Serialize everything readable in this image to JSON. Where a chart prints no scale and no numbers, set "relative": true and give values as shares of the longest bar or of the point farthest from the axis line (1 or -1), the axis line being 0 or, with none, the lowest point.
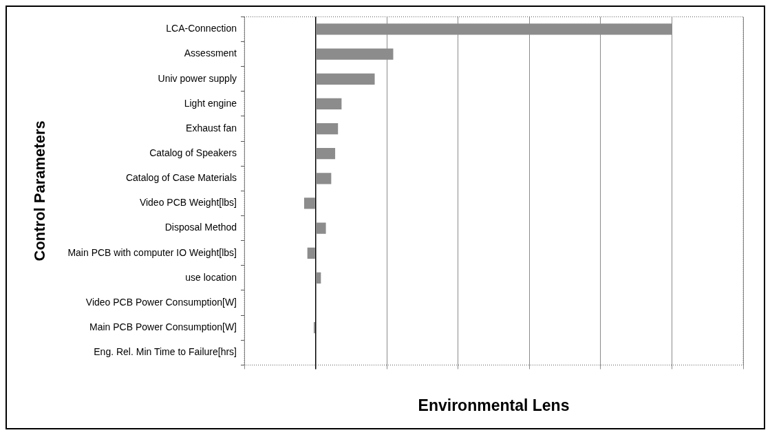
{
  "chart_data": {
    "type": "bar",
    "orientation": "horizontal",
    "relative": true,
    "xlabel": "Environmental Lens",
    "ylabel": "Control Parameters",
    "categories": [
      "LCA-Connection",
      "Assessment",
      "Univ power supply",
      "Light engine",
      "Exhaust fan",
      "Catalog of Speakers",
      "Catalog of Case Materials",
      "Video PCB Weight[lbs]",
      "Disposal Method",
      "Main PCB with computer IO Weight[lbs]",
      "use location",
      "Video PCB Power Consumption[W]",
      "Main PCB Power Consumption[W]",
      "Eng. Rel. Min Time to Failure[hrs]"
    ],
    "values": [
      1,
      0.218,
      0.166,
      0.073,
      0.063,
      0.055,
      0.044,
      -0.032,
      0.029,
      -0.023,
      0.015,
      0,
      -0.005,
      0
    ],
    "color": "#8c8c8c",
    "grid": "x",
    "legend": false
  }
}
